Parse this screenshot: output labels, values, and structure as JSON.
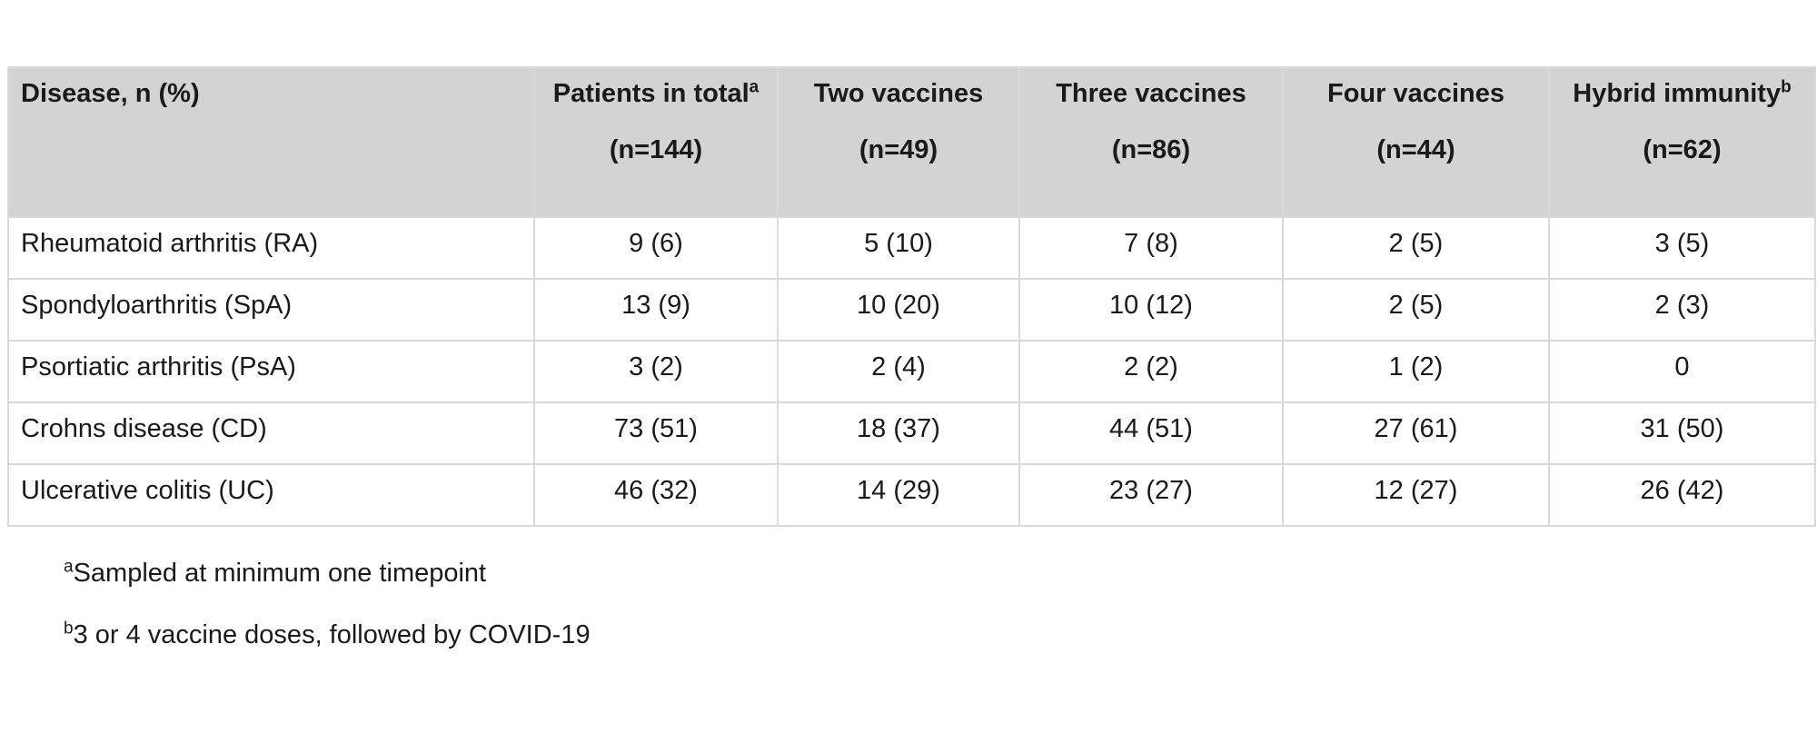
{
  "colors": {
    "header_bg": "#d3d3d3",
    "border": "#d9d9d9",
    "text": "#1a1a1a",
    "page_bg": "#ffffff"
  },
  "table": {
    "columns": [
      {
        "title": "Disease, n (%)",
        "sup": "",
        "count": ""
      },
      {
        "title": "Patients in total",
        "sup": "a",
        "count": "(n=144)"
      },
      {
        "title": "Two vaccines",
        "sup": "",
        "count": "(n=49)"
      },
      {
        "title": "Three vaccines",
        "sup": "",
        "count": "(n=86)"
      },
      {
        "title": "Four vaccines",
        "sup": "",
        "count": "(n=44)"
      },
      {
        "title": "Hybrid immunity",
        "sup": "b",
        "count": "(n=62)"
      }
    ],
    "rows": [
      {
        "label": "Rheumatoid arthritis (RA)",
        "values": [
          "9 (6)",
          "5 (10)",
          "7 (8)",
          "2 (5)",
          "3 (5)"
        ]
      },
      {
        "label": "Spondyloarthritis (SpA)",
        "values": [
          "13 (9)",
          "10 (20)",
          "10 (12)",
          "2 (5)",
          "2 (3)"
        ]
      },
      {
        "label": "Psortiatic arthritis (PsA)",
        "values": [
          "3 (2)",
          "2 (4)",
          "2 (2)",
          "1 (2)",
          "0"
        ]
      },
      {
        "label": "Crohns disease (CD)",
        "values": [
          "73 (51)",
          "18 (37)",
          "44 (51)",
          "27 (61)",
          "31 (50)"
        ]
      },
      {
        "label": "Ulcerative colitis (UC)",
        "values": [
          "46 (32)",
          "14 (29)",
          "23 (27)",
          "12 (27)",
          "26 (42)"
        ]
      }
    ]
  },
  "footnotes": [
    {
      "sup": "a",
      "text": "Sampled at minimum one timepoint"
    },
    {
      "sup": "b",
      "text": "3 or 4 vaccine doses, followed by COVID-19"
    }
  ]
}
